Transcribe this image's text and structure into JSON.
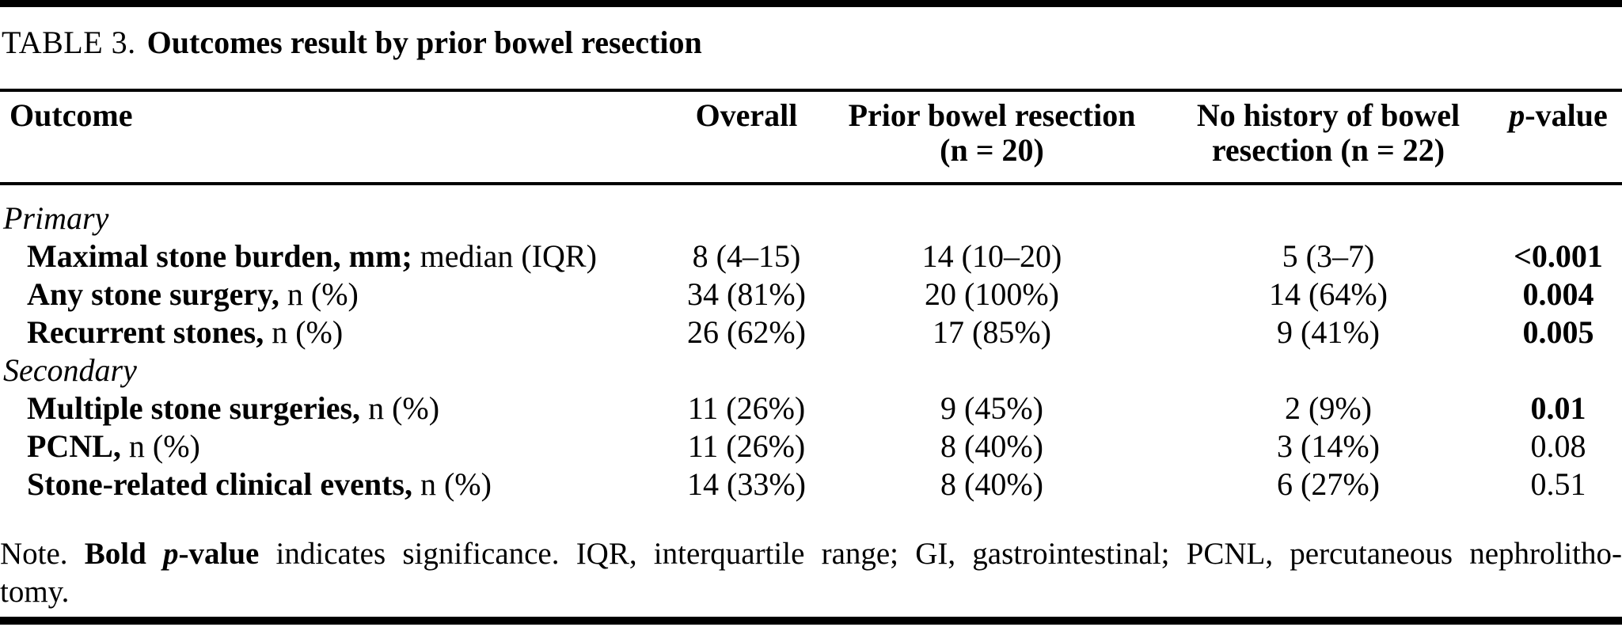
{
  "title": {
    "label": "TABLE 3.",
    "text": "Outcomes result by prior bowel resection"
  },
  "table": {
    "columns": [
      {
        "label": "Outcome"
      },
      {
        "label": "Overall"
      },
      {
        "label": "Prior bowel resection",
        "sub": "(n = 20)"
      },
      {
        "label": "No history of bowel",
        "sub": "resection (n = 22)"
      },
      {
        "p": "p",
        "rest": "-value"
      }
    ],
    "rows": [
      {
        "type": "section",
        "label": "Primary"
      },
      {
        "type": "item",
        "bold": "Maximal stone burden, mm;",
        "rest": " median (IQR)",
        "overall": "8 (4–15)",
        "prior": "14 (10–20)",
        "nohist": "5 (3–7)",
        "p": "<0.001",
        "p_bold": true
      },
      {
        "type": "item",
        "bold": "Any stone surgery,",
        "rest": " n (%)",
        "overall": "34 (81%)",
        "prior": "20 (100%)",
        "nohist": "14 (64%)",
        "p": "0.004",
        "p_bold": true
      },
      {
        "type": "item",
        "bold": "Recurrent stones,",
        "rest": " n (%)",
        "overall": "26 (62%)",
        "prior": "17 (85%)",
        "nohist": "9 (41%)",
        "p": "0.005",
        "p_bold": true
      },
      {
        "type": "section",
        "label": "Secondary"
      },
      {
        "type": "item",
        "bold": "Multiple stone surgeries,",
        "rest": " n (%)",
        "overall": "11 (26%)",
        "prior": "9 (45%)",
        "nohist": "2 (9%)",
        "p": "0.01",
        "p_bold": true
      },
      {
        "type": "item",
        "bold": "PCNL,",
        "rest": " n (%)",
        "overall": "11 (26%)",
        "prior": "8 (40%)",
        "nohist": "3 (14%)",
        "p": "0.08",
        "p_bold": false
      },
      {
        "type": "item",
        "bold": "Stone-related clinical events,",
        "rest": " n (%)",
        "overall": "14 (33%)",
        "prior": "8 (40%)",
        "nohist": "6 (27%)",
        "p": "0.51",
        "p_bold": false
      }
    ]
  },
  "note": {
    "prefix": "Note. ",
    "bold1": "Bold ",
    "p_italic": "p",
    "bold2": "-value",
    "rest": " indicates significance. IQR, interquartile range; GI, gastrointestinal; PCNL, percutaneous nephrolitho-",
    "line2": "tomy."
  }
}
